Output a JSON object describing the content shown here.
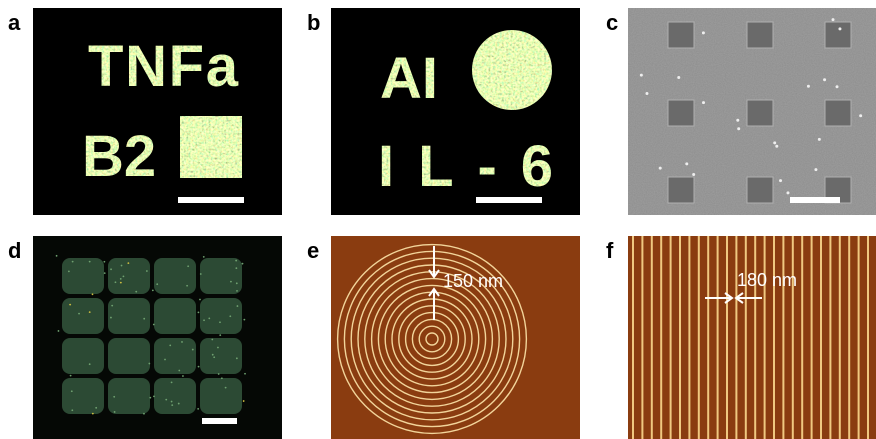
{
  "panels": [
    {
      "label": "a",
      "text_lines": [
        "TNFa",
        "B2"
      ]
    },
    {
      "label": "b",
      "text_lines": [
        "AI",
        "IL-6"
      ]
    },
    {
      "label": "c"
    },
    {
      "label": "d"
    },
    {
      "label": "e",
      "annotation": "150 nm"
    },
    {
      "label": "f",
      "annotation": "180 nm"
    }
  ]
}
